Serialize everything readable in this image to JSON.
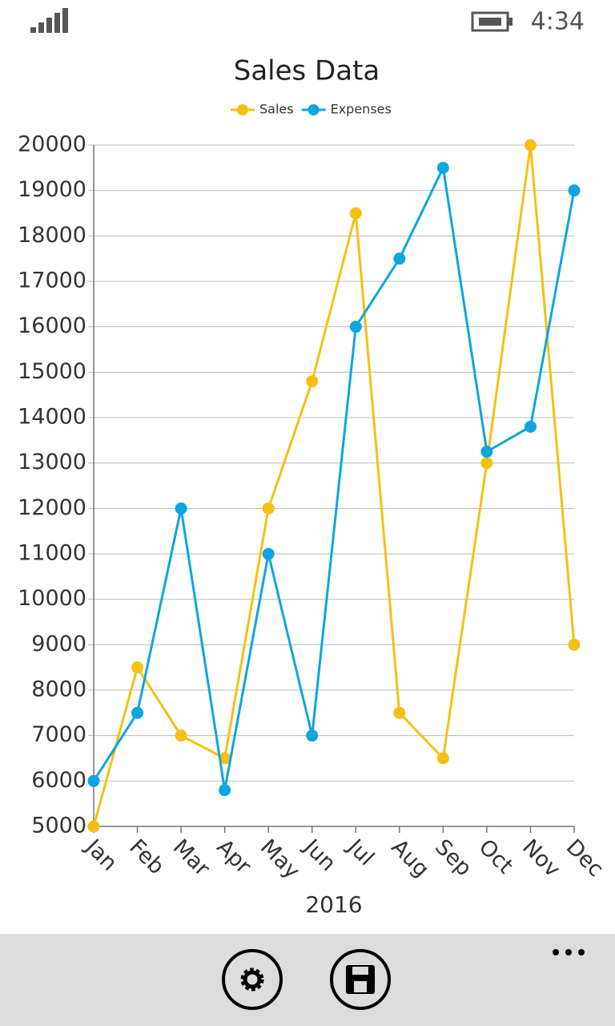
{
  "status_bar": {
    "time": "4:34"
  },
  "chart_data": {
    "type": "line",
    "title": "Sales Data",
    "x_label": "2016",
    "categories": [
      "Jan",
      "Feb",
      "Mar",
      "Apr",
      "May",
      "Jun",
      "Jul",
      "Aug",
      "Sep",
      "Oct",
      "Nov",
      "Dec"
    ],
    "series": [
      {
        "name": "Sales",
        "color": "#f5c013",
        "values": [
          5000,
          8500,
          7000,
          6500,
          12000,
          14800,
          18500,
          7500,
          6500,
          13000,
          20000,
          9000
        ]
      },
      {
        "name": "Expenses",
        "color": "#0ea5e0",
        "values": [
          6000,
          7500,
          12000,
          5800,
          11000,
          7000,
          16000,
          17500,
          19500,
          13250,
          13800,
          19000
        ]
      }
    ],
    "ylim": [
      5000,
      20000
    ],
    "yticks": [
      5000,
      6000,
      7000,
      8000,
      9000,
      10000,
      11000,
      12000,
      13000,
      14000,
      15000,
      16000,
      17000,
      18000,
      19000,
      20000
    ],
    "grid": true,
    "legend": "top"
  }
}
